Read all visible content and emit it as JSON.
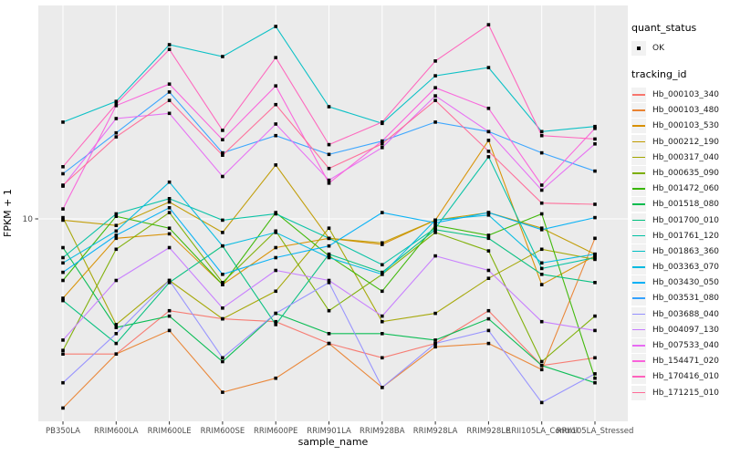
{
  "figure": {
    "background": "#FFFFFF",
    "panel_background": "#EBEBEB",
    "gridline_color": "#FFFFFF",
    "tick_color": "#333333",
    "tick_label_color": "#4D4D4D",
    "point_color": "#000000"
  },
  "axes": {
    "x_title": "sample_name",
    "y_title": "FPKM + 1",
    "y_tick_labels": [
      "10"
    ]
  },
  "legend": {
    "quant_status_title": "quant_status",
    "quant_status_items": [
      {
        "label": "OK",
        "symbol": "black-point"
      }
    ],
    "tracking_id_title": "tracking_id"
  },
  "chart_data": {
    "type": "line",
    "title": "",
    "xlabel": "sample_name",
    "ylabel": "FPKM + 1",
    "y_scale": "log10",
    "y_ticks": [
      10
    ],
    "ylim": [
      2,
      50
    ],
    "grid": "white vertical gridline per category, white horizontal gridline at y=10, gray panel",
    "legend_position": "right",
    "point_shape": "filled-square",
    "point_color": "#000000",
    "quant_status_all_points": "OK",
    "categories": [
      "PB350LA",
      "RRIM600LA",
      "RRIM600LE",
      "RRIM600SE",
      "RRIM600PE",
      "RRIM901LA",
      "RRIM928BA",
      "RRIM928LA",
      "RRIM928LE",
      "RRII105LA_Control",
      "RRII105LA_Stressed"
    ],
    "series": [
      {
        "name": "Hb_000103_340",
        "color": "#F8766D",
        "values": [
          3.5,
          3.5,
          4.9,
          4.6,
          4.5,
          3.8,
          3.4,
          3.8,
          4.9,
          3.2,
          3.4
        ]
      },
      {
        "name": "Hb_000103_480",
        "color": "#EA8331",
        "values": [
          2.3,
          3.5,
          4.2,
          2.6,
          2.9,
          3.8,
          2.7,
          3.7,
          3.8,
          3.1,
          8.6
        ]
      },
      {
        "name": "Hb_000103_530",
        "color": "#D89000",
        "values": [
          5.4,
          8.6,
          8.9,
          6.0,
          8.0,
          8.6,
          8.2,
          9.9,
          18.4,
          6.0,
          7.5
        ]
      },
      {
        "name": "Hb_000212_190",
        "color": "#C09B00",
        "values": [
          9.9,
          9.5,
          11.4,
          9.0,
          15.2,
          8.6,
          8.3,
          9.9,
          10.5,
          9.3,
          7.6
        ]
      },
      {
        "name": "Hb_000317_040",
        "color": "#A3A500",
        "values": [
          10.1,
          4.4,
          6.2,
          4.6,
          5.7,
          9.3,
          4.5,
          4.8,
          6.3,
          7.9,
          7.3
        ]
      },
      {
        "name": "Hb_000635_090",
        "color": "#7CAE00",
        "values": [
          3.6,
          7.9,
          10.5,
          6.1,
          9.1,
          4.9,
          6.5,
          9.0,
          7.8,
          3.3,
          4.7
        ]
      },
      {
        "name": "Hb_001472_060",
        "color": "#39B600",
        "values": [
          6.2,
          10.2,
          9.3,
          6.0,
          10.5,
          7.5,
          5.7,
          9.5,
          8.8,
          10.4,
          2.9
        ]
      },
      {
        "name": "Hb_001518_080",
        "color": "#00BB4E",
        "values": [
          8.0,
          4.3,
          4.7,
          3.3,
          4.8,
          4.1,
          4.1,
          3.9,
          4.6,
          3.2,
          2.8
        ]
      },
      {
        "name": "Hb_001700_010",
        "color": "#00BF7D",
        "values": [
          5.3,
          3.8,
          6.1,
          8.1,
          4.4,
          7.6,
          6.6,
          9.2,
          8.6,
          6.5,
          6.1
        ]
      },
      {
        "name": "Hb_001761_120",
        "color": "#00C1A3",
        "values": [
          7.4,
          10.4,
          11.7,
          9.9,
          10.4,
          8.6,
          7.0,
          9.3,
          16.2,
          6.8,
          7.4
        ]
      },
      {
        "name": "Hb_001863_360",
        "color": "#00BFC4",
        "values": [
          21.2,
          24.9,
          38.7,
          35.3,
          44.6,
          23.9,
          21.0,
          30.4,
          32.4,
          19.7,
          20.5
        ]
      },
      {
        "name": "Hb_003363_070",
        "color": "#00BAE0",
        "values": [
          7.1,
          9.1,
          13.3,
          8.1,
          9.0,
          7.4,
          6.5,
          9.9,
          10.3,
          7.1,
          7.6
        ]
      },
      {
        "name": "Hb_003430_050",
        "color": "#00B0F6",
        "values": [
          6.6,
          8.8,
          10.9,
          6.5,
          7.4,
          8.1,
          10.5,
          9.7,
          10.5,
          9.2,
          10.1
        ]
      },
      {
        "name": "Hb_003531_080",
        "color": "#35A2FF",
        "values": [
          14.2,
          19.5,
          26.8,
          16.7,
          19.1,
          16.5,
          18.3,
          21.2,
          19.7,
          16.7,
          14.5
        ]
      },
      {
        "name": "Hb_003688_040",
        "color": "#9590FF",
        "values": [
          2.8,
          4.1,
          6.2,
          3.4,
          4.8,
          6.1,
          2.7,
          3.8,
          4.2,
          2.4,
          3.0
        ]
      },
      {
        "name": "Hb_004097_130",
        "color": "#C77CFF",
        "values": [
          3.9,
          6.2,
          8.0,
          5.0,
          6.7,
          6.2,
          4.7,
          7.5,
          6.7,
          4.5,
          4.2
        ]
      },
      {
        "name": "Hb_007533_040",
        "color": "#E76BF3",
        "values": [
          12.9,
          21.8,
          22.7,
          13.9,
          20.9,
          13.5,
          17.4,
          26.0,
          19.7,
          12.5,
          17.9
        ]
      },
      {
        "name": "Hb_154471_020",
        "color": "#FA62DB",
        "values": [
          10.8,
          24.1,
          28.5,
          18.5,
          28.1,
          13.2,
          18.3,
          27.7,
          23.6,
          13.0,
          20.2
        ]
      },
      {
        "name": "Hb_170416_010",
        "color": "#FF62BC",
        "values": [
          15.0,
          24.4,
          37.3,
          19.9,
          35.0,
          17.8,
          21.2,
          34.1,
          45.2,
          19.1,
          18.6
        ]
      },
      {
        "name": "Hb_171215_010",
        "color": "#FF6A98",
        "values": [
          13.0,
          18.9,
          25.1,
          16.4,
          24.3,
          14.8,
          17.9,
          25.1,
          16.9,
          11.3,
          11.2
        ]
      }
    ]
  }
}
